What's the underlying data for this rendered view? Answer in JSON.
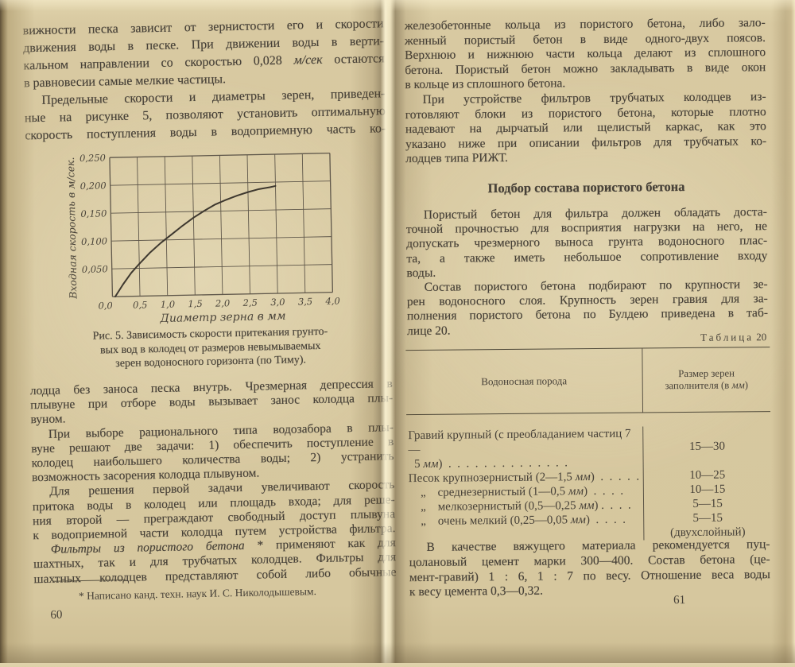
{
  "colors": {
    "paper": "#d8c9a1",
    "ink": "#474138",
    "chart_grid": "#5f574a",
    "chart_line": "#3e382f"
  },
  "left_page": {
    "page_number": "60",
    "paragraphs_top": [
      {
        "indent": false,
        "last_justified": false,
        "lines": [
          "вижности песка зависит от зернистости его и скорости",
          "движения воды в песке. При движении воды в верти-",
          [
            "кальном направлении со скоростью 0,028 ",
            {
              "i": "м/сек"
            },
            " остаются"
          ],
          "в равновесии самые мелкие частицы."
        ]
      },
      {
        "indent": true,
        "last_justified": true,
        "lines": [
          "Предельные скорости и диаметры зерен, приведен-",
          "ные на рисунке 5, позволяют установить оптимальную",
          "скорость поступления воды в водоприемную часть ко-"
        ]
      }
    ],
    "figure_caption": [
      {
        "indent": false,
        "center": true,
        "last_justified": false,
        "lines": [
          "Рис. 5. Зависимость скорости притекания грунто-",
          "вых вод в колодец от размеров невымываемых",
          "зерен водоносного горизонта (по Тиму)."
        ]
      }
    ],
    "paragraphs_bottom": [
      {
        "indent": false,
        "last_justified": false,
        "lines": [
          "лодца без заноса песка внутрь. Чрезмерная депрессия в",
          "плывуне при отборе воды вызывает занос колодца плы-",
          "вуном."
        ]
      },
      {
        "indent": true,
        "last_justified": false,
        "lines": [
          "При выборе рационального типа водозабора в плы-",
          "вуне решают две задачи: 1) обеспечить поступление в",
          "колодец наибольшего количества воды; 2) устранить",
          "возможность засорения колодца плывуном."
        ]
      },
      {
        "indent": true,
        "last_justified": true,
        "lines": [
          "Для решения первой задачи увеличивают скорость",
          "притока воды в колодец или площадь входа; для реше-",
          "ния второй — преграждают свободный доступ плывуна",
          "к водоприемной части колодца путем устройства фильтра."
        ]
      },
      {
        "indent": true,
        "last_justified": true,
        "lines": [
          [
            {
              "i": "Фильтры из пористого бетона"
            },
            " * применяют как для"
          ],
          "шахтных, так и для трубчатых колодцев. Фильтры для",
          "шахтных колодцев представляют собой либо обычные"
        ]
      }
    ],
    "footnote": "* Написано канд. техн. наук И. С. Николодышевым."
  },
  "right_page": {
    "page_number": "61",
    "paragraphs_top": [
      {
        "indent": false,
        "last_justified": false,
        "lines": [
          "железобетонные кольца из пористого бетона, либо зало-",
          "женный пористый бетон в виде одного-двух поясов.",
          "Верхнюю и нижнюю части кольца делают из сплошного",
          "бетона. Пористый бетон можно закладывать в виде окон",
          "в кольце из сплошного бетона."
        ]
      },
      {
        "indent": true,
        "last_justified": false,
        "lines": [
          "При устройстве фильтров трубчатых колодцев из-",
          "готовляют блоки из пористого бетона, которые плотно",
          "надевают на дырчатый или щелистый каркас, как это",
          "указано ниже при описании фильтров для трубчатых ко-",
          "лодцев типа РИЖТ."
        ]
      }
    ],
    "heading": "Подбор состава пористого бетона",
    "paragraphs_mid": [
      {
        "indent": true,
        "last_justified": false,
        "lines": [
          "Пористый бетон для фильтра должен обладать доста-",
          "точной прочностью для восприятия нагрузки на него, не",
          "допускать чрезмерного выноса грунта водоносного плас-",
          "та, а также иметь небольшое сопротивление входу",
          "воды."
        ]
      },
      {
        "indent": true,
        "last_justified": false,
        "lines": [
          "Состав пористого бетона подбирают по крупности зе-",
          "рен водоносного слоя. Крупность зерен гравия для за-",
          "полнения пористого бетона по Булдею приведена в таб-",
          "лице 20."
        ]
      }
    ],
    "table": {
      "label_word": "Таблица",
      "label_number": "20",
      "col1_header": "Водоносная порода",
      "col2_header_lines": [
        [
          "Размер зерен"
        ],
        [
          "заполнителя (в ",
          {
            "i": "мм"
          },
          ")"
        ]
      ],
      "rows": [
        {
          "valign": "center",
          "name_lines": [
            [
              "Гравий крупный (с преобладанием частиц 7—"
            ],
            [
              "  5 ",
              {
                "i": "мм"
              },
              ")  .  .  .  .  .  .  .  .  .  .  .  .  .  ."
            ]
          ],
          "values": [
            "15—30"
          ]
        },
        {
          "valign": "center",
          "name_lines": [
            [
              "Песок крупнозернистый (2—1,5 ",
              {
                "i": "мм"
              },
              ")  .  .  .  .  ."
            ]
          ],
          "values": [
            "10—25"
          ]
        },
        {
          "valign": "center",
          "name_lines": [
            [
              "    „    среднезернистый (1—0,5 ",
              {
                "i": "мм"
              },
              ")  .  .  .  ."
            ]
          ],
          "values": [
            "10—15"
          ]
        },
        {
          "valign": "center",
          "name_lines": [
            [
              "    „    мелкозернистый (0,5—0,25 ",
              {
                "i": "мм"
              },
              ") .  .  .  ."
            ]
          ],
          "values": [
            "5—15"
          ]
        },
        {
          "valign": "top",
          "name_lines": [
            [
              "    „    очень мелкий (0,25—0,05 ",
              {
                "i": "мм"
              },
              ")  .  .  .  ."
            ]
          ],
          "values": [
            "5—15",
            "(двухслойный)"
          ]
        }
      ]
    },
    "paragraphs_bottom": [
      {
        "indent": true,
        "last_justified": false,
        "lines": [
          "В качестве вяжущего материала рекомендуется пуц-",
          "цолановый цемент марки 300—400. Состав бетона (це-",
          "мент-гравий) 1 : 6, 1 : 7 по весу. Отношение веса воды",
          "к весу цемента 0,3—0,32."
        ]
      }
    ]
  },
  "chart_data": {
    "type": "line",
    "title": "Рис. 5",
    "xlabel": "Диаметр зерна в мм",
    "ylabel": "Входная скорость в м/сек.",
    "xlim": [
      0,
      4.0
    ],
    "ylim": [
      0,
      0.25
    ],
    "xticks": [
      0,
      0.5,
      1.0,
      1.5,
      2.0,
      2.5,
      3.0,
      3.5,
      4.0
    ],
    "xtick_labels": [
      "0,0",
      "0,5",
      "1,0",
      "1,5",
      "2,0",
      "2,5",
      "3,0",
      "3,5",
      "4,0"
    ],
    "yticks": [
      0,
      0.05,
      0.1,
      0.15,
      0.2,
      0.25
    ],
    "ytick_labels": [
      "0,0",
      "0,050",
      "0,100",
      "0,150",
      "0,200",
      "0,250"
    ],
    "grid": true,
    "legend": false,
    "grid_color": "#5f574a",
    "line_color": "#3e382f",
    "series": [
      {
        "name": "входная скорость от диаметра зерна (по Тиму)",
        "points": [
          [
            0.05,
            0
          ],
          [
            0.2,
            0.022
          ],
          [
            0.35,
            0.042
          ],
          [
            0.5,
            0.058
          ],
          [
            0.7,
            0.078
          ],
          [
            0.9,
            0.095
          ],
          [
            1.1,
            0.11
          ],
          [
            1.3,
            0.125
          ],
          [
            1.5,
            0.139
          ],
          [
            1.7,
            0.151
          ],
          [
            1.9,
            0.162
          ],
          [
            2.1,
            0.17
          ],
          [
            2.3,
            0.177
          ],
          [
            2.5,
            0.183
          ],
          [
            2.7,
            0.188
          ],
          [
            2.9,
            0.191
          ],
          [
            3.0,
            0.193
          ]
        ]
      }
    ]
  }
}
